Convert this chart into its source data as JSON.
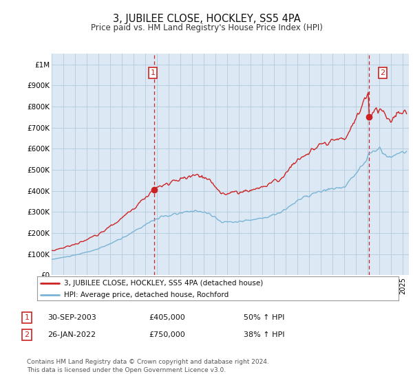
{
  "title": "3, JUBILEE CLOSE, HOCKLEY, SS5 4PA",
  "subtitle": "Price paid vs. HM Land Registry's House Price Index (HPI)",
  "ylim": [
    0,
    1050000
  ],
  "yticks": [
    0,
    100000,
    200000,
    300000,
    400000,
    500000,
    600000,
    700000,
    800000,
    900000,
    1000000
  ],
  "ytick_labels": [
    "£0",
    "£100K",
    "£200K",
    "£300K",
    "£400K",
    "£500K",
    "£600K",
    "£700K",
    "£800K",
    "£900K",
    "£1M"
  ],
  "sale1_date": 2003.75,
  "sale1_price": 405000,
  "sale2_date": 2022.07,
  "sale2_price": 750000,
  "hpi_color": "#7ab3d4",
  "price_color": "#cc2222",
  "vline_color": "#cc2222",
  "background_color": "#ffffff",
  "chart_bg_color": "#dce9f5",
  "grid_color": "#b8cfe0",
  "annotation_box_color": "#cc2222",
  "legend_label1": "3, JUBILEE CLOSE, HOCKLEY, SS5 4PA (detached house)",
  "legend_label2": "HPI: Average price, detached house, Rochford",
  "footnote": "Contains HM Land Registry data © Crown copyright and database right 2024.\nThis data is licensed under the Open Government Licence v3.0.",
  "table_rows": [
    [
      "1",
      "30-SEP-2003",
      "£405,000",
      "50% ↑ HPI"
    ],
    [
      "2",
      "26-JAN-2022",
      "£750,000",
      "38% ↑ HPI"
    ]
  ]
}
